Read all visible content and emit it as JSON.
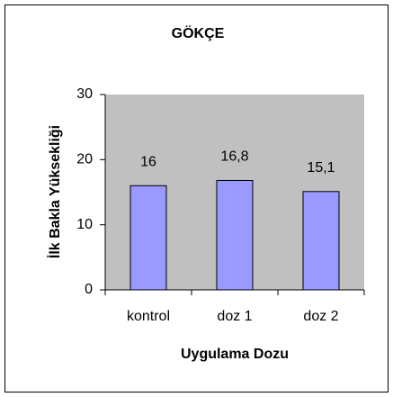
{
  "chart_data": {
    "type": "bar",
    "title": "GÖKÇE",
    "x_label": "Uygulama Dozu",
    "y_label": "İlk Bakla Yüksekliği",
    "categories": [
      "kontrol",
      "doz 1",
      "doz 2"
    ],
    "values": [
      16,
      16.8,
      15.1
    ],
    "value_labels": [
      "16",
      "16,8",
      "15,1"
    ],
    "color": "#9999ff",
    "plot_background": "#c0c0c0",
    "ylim": [
      0,
      30
    ],
    "yticks": [
      0,
      10,
      20,
      30
    ],
    "grid": false
  }
}
